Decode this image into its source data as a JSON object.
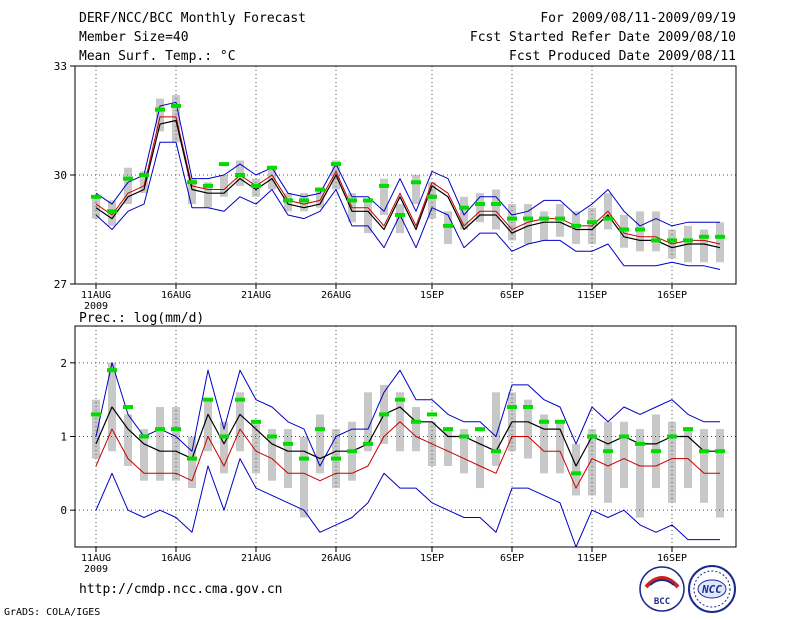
{
  "header": {
    "title": "DERF/NCC/BCC Monthly Forecast",
    "member_size": "Member Size=40",
    "variable": "Mean Surf. Temp.: °C",
    "forecast_period": "For 2009/08/11-2009/09/19",
    "started_date": "Fcst Started Refer Date 2009/08/10",
    "produced_date": "Fcst Produced Date 2009/08/11"
  },
  "footer": {
    "url": "http://cmdp.ncc.cma.gov.cn",
    "credit": "GrADS: COLA/IGES",
    "logo_bcc": "BCC",
    "logo_ncc": "NCC"
  },
  "colors": {
    "spread": "#c8c8c8",
    "member_min_max": "#0000c8",
    "ensemble_mean": "#000000",
    "other_mean": "#c80000",
    "observed": "#00dc00",
    "grid": "#505050"
  },
  "chart_data": [
    {
      "type": "line",
      "title": "Mean Surf. Temp.: °C",
      "ylabel": "°C",
      "ylim": [
        27,
        33
      ],
      "yticks": [
        27,
        30,
        33
      ],
      "grid": true,
      "x": [
        0,
        1,
        2,
        3,
        4,
        5,
        6,
        7,
        8,
        9,
        10,
        11,
        12,
        13,
        14,
        15,
        16,
        17,
        18,
        19,
        20,
        21,
        22,
        23,
        24,
        25,
        26,
        27,
        28,
        29,
        30,
        31,
        32,
        33,
        34,
        35,
        36,
        37,
        38,
        39
      ],
      "xticks": [
        {
          "i": 0,
          "label": "11AUG",
          "sub": "2009"
        },
        {
          "i": 5,
          "label": "16AUG"
        },
        {
          "i": 10,
          "label": "21AUG"
        },
        {
          "i": 15,
          "label": "26AUG"
        },
        {
          "i": 21,
          "label": "1SEP"
        },
        {
          "i": 26,
          "label": "6SEP"
        },
        {
          "i": 31,
          "label": "11SEP"
        },
        {
          "i": 36,
          "label": "16SEP"
        }
      ],
      "series": [
        {
          "name": "box_top",
          "values": [
            29.4,
            29.3,
            30.2,
            30.1,
            32.1,
            32.2,
            29.9,
            29.8,
            30.0,
            30.4,
            29.9,
            30.2,
            29.5,
            29.5,
            29.6,
            30.4,
            29.5,
            29.3,
            29.9,
            29.2,
            30.0,
            29.8,
            29.0,
            29.4,
            29.5,
            29.6,
            29.2,
            29.2,
            29.0,
            29.2,
            29.0,
            29.1,
            29.5,
            28.9,
            29.0,
            29.0,
            28.5,
            28.6,
            28.5,
            28.7
          ]
        },
        {
          "name": "box_bottom",
          "values": [
            28.8,
            28.6,
            29.2,
            29.5,
            31.2,
            30.9,
            29.2,
            29.1,
            29.4,
            29.7,
            29.4,
            29.6,
            29.0,
            29.0,
            29.1,
            29.6,
            28.7,
            28.4,
            28.9,
            28.4,
            29.2,
            28.8,
            28.1,
            28.5,
            28.7,
            28.5,
            28.2,
            28.1,
            28.2,
            28.3,
            28.1,
            28.1,
            28.5,
            28.0,
            27.9,
            27.9,
            27.7,
            27.6,
            27.6,
            27.6
          ]
        },
        {
          "name": "member_max",
          "values": [
            29.5,
            29.2,
            29.8,
            30.0,
            31.9,
            32.0,
            29.9,
            29.9,
            30.0,
            30.3,
            30.0,
            30.2,
            29.5,
            29.4,
            29.5,
            30.3,
            29.4,
            29.4,
            29.0,
            29.9,
            29.0,
            30.1,
            29.9,
            28.9,
            29.4,
            29.4,
            28.9,
            29.0,
            29.3,
            29.3,
            28.9,
            29.2,
            29.6,
            29.0,
            28.6,
            28.8,
            28.6,
            28.7,
            28.7,
            28.7
          ]
        },
        {
          "name": "member_min",
          "values": [
            28.9,
            28.5,
            29.0,
            29.2,
            30.9,
            30.9,
            29.1,
            29.1,
            29.0,
            29.4,
            29.2,
            29.6,
            28.9,
            28.8,
            29.0,
            29.6,
            28.6,
            28.6,
            28.0,
            28.9,
            28.0,
            29.1,
            28.9,
            28.0,
            28.4,
            28.4,
            27.9,
            28.1,
            28.2,
            28.2,
            27.9,
            27.9,
            28.1,
            27.5,
            27.5,
            27.5,
            27.6,
            27.5,
            27.5,
            27.4
          ]
        },
        {
          "name": "ensemble_mean",
          "values": [
            29.1,
            28.8,
            29.4,
            29.6,
            31.4,
            31.5,
            29.6,
            29.5,
            29.5,
            29.9,
            29.6,
            29.9,
            29.2,
            29.1,
            29.2,
            30.0,
            29.0,
            29.0,
            28.5,
            29.4,
            28.5,
            29.7,
            29.4,
            28.5,
            28.9,
            28.9,
            28.4,
            28.6,
            28.7,
            28.7,
            28.5,
            28.5,
            28.9,
            28.3,
            28.2,
            28.2,
            28.0,
            28.1,
            28.1,
            28.0
          ]
        },
        {
          "name": "other_mean",
          "values": [
            29.2,
            28.9,
            29.5,
            29.7,
            31.6,
            31.6,
            29.7,
            29.6,
            29.6,
            30.0,
            29.7,
            30.0,
            29.3,
            29.2,
            29.3,
            30.1,
            29.1,
            29.1,
            28.6,
            29.5,
            28.6,
            29.8,
            29.5,
            28.6,
            29.0,
            29.0,
            28.5,
            28.7,
            28.8,
            28.8,
            28.6,
            28.6,
            29.0,
            28.4,
            28.3,
            28.3,
            28.1,
            28.2,
            28.2,
            28.1
          ]
        },
        {
          "name": "observed",
          "values": [
            29.4,
            29.0,
            29.9,
            30.0,
            31.8,
            31.9,
            29.8,
            29.7,
            30.3,
            30.0,
            29.7,
            30.2,
            29.3,
            29.3,
            29.6,
            30.3,
            29.3,
            29.3,
            29.7,
            28.9,
            29.8,
            29.4,
            28.6,
            29.1,
            29.2,
            29.2,
            28.8,
            28.8,
            28.8,
            28.8,
            28.6,
            28.7,
            28.8,
            28.5,
            28.5,
            28.2,
            28.2,
            28.2,
            28.3,
            28.3
          ]
        }
      ]
    },
    {
      "type": "line",
      "title": "Prec.: log(mm/d)",
      "ylabel": "log(mm/d)",
      "ylim": [
        -0.5,
        2.5
      ],
      "yticks": [
        0,
        1,
        2
      ],
      "grid": true,
      "x": [
        0,
        1,
        2,
        3,
        4,
        5,
        6,
        7,
        8,
        9,
        10,
        11,
        12,
        13,
        14,
        15,
        16,
        17,
        18,
        19,
        20,
        21,
        22,
        23,
        24,
        25,
        26,
        27,
        28,
        29,
        30,
        31,
        32,
        33,
        34,
        35,
        36,
        37,
        38,
        39
      ],
      "xticks": [
        {
          "i": 0,
          "label": "11AUG",
          "sub": "2009"
        },
        {
          "i": 5,
          "label": "16AUG"
        },
        {
          "i": 10,
          "label": "21AUG"
        },
        {
          "i": 15,
          "label": "26AUG"
        },
        {
          "i": 21,
          "label": "1SEP"
        },
        {
          "i": 26,
          "label": "6SEP"
        },
        {
          "i": 31,
          "label": "11SEP"
        },
        {
          "i": 36,
          "label": "16SEP"
        }
      ],
      "series": [
        {
          "name": "box_top",
          "values": [
            1.5,
            2.0,
            1.3,
            1.1,
            1.4,
            1.4,
            1.0,
            1.5,
            1.2,
            1.6,
            1.2,
            1.1,
            1.1,
            1.0,
            1.3,
            1.1,
            1.2,
            1.6,
            1.7,
            1.6,
            1.4,
            1.2,
            1.1,
            1.1,
            1.0,
            1.6,
            1.6,
            1.5,
            1.3,
            1.2,
            0.9,
            1.1,
            1.2,
            1.2,
            1.1,
            1.3,
            1.2,
            1.1,
            1.1,
            1.1
          ]
        },
        {
          "name": "box_bottom",
          "values": [
            0.7,
            0.8,
            0.6,
            0.4,
            0.4,
            0.4,
            0.3,
            0.8,
            0.5,
            0.8,
            0.5,
            0.4,
            0.3,
            -0.1,
            0.5,
            0.3,
            0.4,
            0.8,
            0.9,
            0.8,
            0.8,
            0.6,
            0.6,
            0.5,
            0.3,
            0.6,
            0.8,
            0.7,
            0.5,
            0.5,
            0.2,
            0.2,
            0.1,
            0.3,
            -0.1,
            0.3,
            0.1,
            0.3,
            0.1,
            -0.1
          ]
        },
        {
          "name": "member_max",
          "values": [
            1.0,
            2.0,
            1.3,
            1.0,
            1.1,
            1.0,
            0.8,
            1.9,
            1.1,
            1.9,
            1.5,
            1.4,
            1.2,
            1.1,
            0.6,
            1.0,
            1.1,
            1.1,
            1.6,
            1.9,
            1.5,
            1.5,
            1.3,
            1.2,
            1.2,
            1.0,
            1.7,
            1.7,
            1.5,
            1.4,
            0.9,
            1.4,
            1.2,
            1.4,
            1.3,
            1.4,
            1.5,
            1.3,
            1.2,
            1.2
          ]
        },
        {
          "name": "member_min",
          "values": [
            0.0,
            0.5,
            0.0,
            -0.1,
            0.0,
            -0.1,
            -0.3,
            0.6,
            0.0,
            0.7,
            0.3,
            0.2,
            0.1,
            0.0,
            -0.3,
            -0.2,
            -0.1,
            0.1,
            0.5,
            0.3,
            0.3,
            0.1,
            0.0,
            -0.1,
            -0.1,
            -0.3,
            0.3,
            0.3,
            0.2,
            0.1,
            -0.5,
            0.0,
            -0.1,
            0.0,
            -0.2,
            -0.3,
            -0.2,
            -0.4,
            -0.4,
            -0.4
          ]
        },
        {
          "name": "ensemble_mean",
          "values": [
            0.9,
            1.4,
            1.1,
            0.9,
            0.8,
            0.8,
            0.7,
            1.3,
            0.9,
            1.3,
            1.1,
            0.9,
            0.8,
            0.8,
            0.7,
            0.8,
            0.8,
            0.9,
            1.3,
            1.4,
            1.2,
            1.2,
            1.0,
            1.0,
            0.9,
            0.8,
            1.2,
            1.2,
            1.1,
            1.1,
            0.6,
            1.0,
            0.9,
            1.0,
            0.9,
            0.9,
            1.0,
            1.0,
            0.8,
            0.8
          ]
        },
        {
          "name": "other_mean",
          "values": [
            0.6,
            1.1,
            0.7,
            0.5,
            0.5,
            0.5,
            0.4,
            1.0,
            0.6,
            1.1,
            0.8,
            0.7,
            0.5,
            0.5,
            0.4,
            0.5,
            0.5,
            0.6,
            1.0,
            1.2,
            1.0,
            0.9,
            0.8,
            0.7,
            0.6,
            0.5,
            1.0,
            1.0,
            0.8,
            0.8,
            0.3,
            0.7,
            0.6,
            0.7,
            0.6,
            0.6,
            0.7,
            0.7,
            0.5,
            0.5
          ]
        },
        {
          "name": "observed",
          "values": [
            1.3,
            1.9,
            1.4,
            1.0,
            1.1,
            1.1,
            0.7,
            1.5,
            1.0,
            1.5,
            1.2,
            1.0,
            0.9,
            0.7,
            1.1,
            0.7,
            0.8,
            0.9,
            1.3,
            1.5,
            1.2,
            1.3,
            1.1,
            1.0,
            1.1,
            0.8,
            1.4,
            1.4,
            1.2,
            1.2,
            0.5,
            1.0,
            0.8,
            1.0,
            0.9,
            0.8,
            1.0,
            1.1,
            0.8,
            0.8
          ]
        }
      ]
    }
  ]
}
